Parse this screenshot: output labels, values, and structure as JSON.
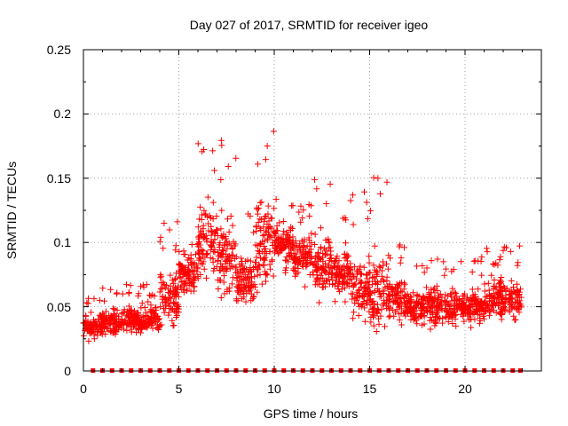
{
  "chart_data": {
    "type": "scatter",
    "title": "Day 027 of 2017, SRMTID for receiver igeo",
    "xlabel": "GPS time / hours",
    "ylabel": "SRMTID / TECUs",
    "xlim": [
      0,
      24
    ],
    "ylim": [
      0,
      0.25
    ],
    "xticks": [
      "0",
      "5",
      "10",
      "15",
      "20"
    ],
    "yticks": [
      "0",
      "0.05",
      "0.1",
      "0.15",
      "0.2",
      "0.25"
    ],
    "grid": true,
    "marker": "plus",
    "series_color": "#ff0000",
    "bins": [
      {
        "x": 0.5,
        "low": 0.02,
        "mid": 0.035,
        "high": 0.06
      },
      {
        "x": 1.5,
        "low": 0.02,
        "mid": 0.038,
        "high": 0.065
      },
      {
        "x": 2.5,
        "low": 0.02,
        "mid": 0.04,
        "high": 0.07
      },
      {
        "x": 3.5,
        "low": 0.02,
        "mid": 0.04,
        "high": 0.07
      },
      {
        "x": 4.5,
        "low": 0.03,
        "mid": 0.055,
        "high": 0.12
      },
      {
        "x": 5.5,
        "low": 0.03,
        "mid": 0.075,
        "high": 0.1
      },
      {
        "x": 6.5,
        "low": 0.05,
        "mid": 0.1,
        "high": 0.18
      },
      {
        "x": 7.5,
        "low": 0.05,
        "mid": 0.09,
        "high": 0.18
      },
      {
        "x": 8.5,
        "low": 0.04,
        "mid": 0.07,
        "high": 0.13
      },
      {
        "x": 9.5,
        "low": 0.05,
        "mid": 0.1,
        "high": 0.2
      },
      {
        "x": 10.5,
        "low": 0.05,
        "mid": 0.1,
        "high": 0.14
      },
      {
        "x": 11.5,
        "low": 0.05,
        "mid": 0.09,
        "high": 0.13
      },
      {
        "x": 12.5,
        "low": 0.04,
        "mid": 0.085,
        "high": 0.15
      },
      {
        "x": 13.5,
        "low": 0.04,
        "mid": 0.075,
        "high": 0.12
      },
      {
        "x": 14.5,
        "low": 0.03,
        "mid": 0.065,
        "high": 0.14
      },
      {
        "x": 15.5,
        "low": 0.03,
        "mid": 0.06,
        "high": 0.16
      },
      {
        "x": 16.5,
        "low": 0.025,
        "mid": 0.055,
        "high": 0.1
      },
      {
        "x": 17.5,
        "low": 0.025,
        "mid": 0.05,
        "high": 0.09
      },
      {
        "x": 18.5,
        "low": 0.025,
        "mid": 0.05,
        "high": 0.09
      },
      {
        "x": 19.5,
        "low": 0.025,
        "mid": 0.05,
        "high": 0.09
      },
      {
        "x": 20.5,
        "low": 0.025,
        "mid": 0.05,
        "high": 0.09
      },
      {
        "x": 21.5,
        "low": 0.03,
        "mid": 0.055,
        "high": 0.1
      },
      {
        "x": 22.3,
        "low": 0.03,
        "mid": 0.055,
        "high": 0.1
      }
    ],
    "zero_markers_x_hours": [
      0.5,
      1.0,
      1.5,
      2.0,
      2.5,
      3.0,
      3.5,
      4.0,
      4.5,
      5.0,
      5.5,
      6.0,
      6.5,
      7.0,
      7.5,
      8.0,
      8.5,
      9.0,
      9.5,
      10.0,
      10.5,
      11.0,
      11.5,
      12.0,
      12.5,
      13.0,
      13.5,
      14.0,
      14.5,
      15.0,
      15.5,
      16.0,
      16.5,
      17.0,
      17.5,
      18.0,
      18.5,
      19.0,
      19.5,
      20.0,
      20.5,
      21.0,
      21.5,
      22.0,
      22.5,
      22.9
    ]
  }
}
